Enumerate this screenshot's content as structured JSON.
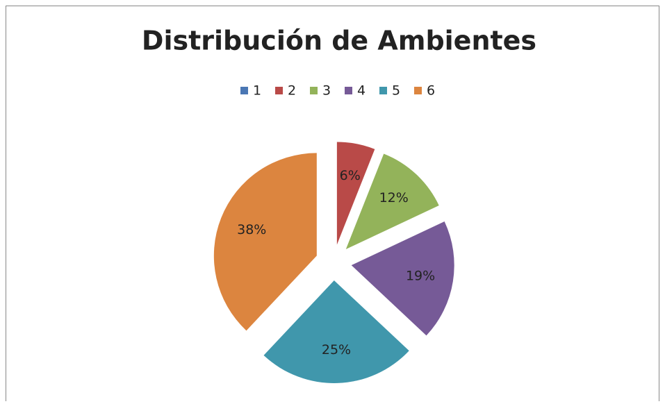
{
  "chart_data": {
    "type": "pie",
    "title": "Distribución de Ambientes",
    "categories": [
      "1",
      "2",
      "3",
      "4",
      "5",
      "6"
    ],
    "values": [
      0,
      6,
      12,
      19,
      25,
      38
    ],
    "value_labels": [
      null,
      "6%",
      "12%",
      "19%",
      "25%",
      "38%"
    ],
    "colors": [
      "#4a77b4",
      "#b94a48",
      "#93b35a",
      "#765a97",
      "#4097ac",
      "#dc853f"
    ],
    "exploded": true,
    "legend": "top"
  }
}
